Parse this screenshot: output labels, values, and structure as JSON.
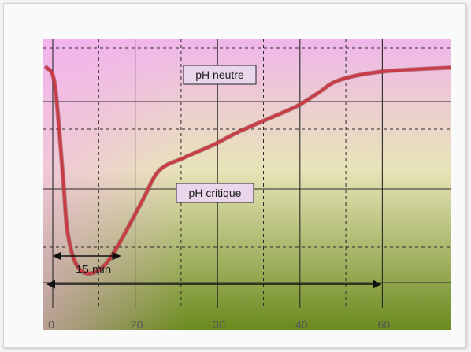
{
  "chart_data": {
    "type": "line",
    "title": "",
    "xlabel": "",
    "ylabel": "",
    "x_ticks": [
      "0",
      "20",
      "30",
      "40",
      "60"
    ],
    "reference_lines": [
      {
        "label": "pH neutre",
        "level": 7.0
      },
      {
        "label": "pH critique",
        "level": 5.5
      }
    ],
    "ylim": [
      4.3,
      7.4
    ],
    "interval_annotations": [
      {
        "label": "15 min",
        "from": 0,
        "to": 15
      },
      {
        "label": "",
        "from": 0,
        "to": 60
      }
    ],
    "series": [
      {
        "x": [
          0,
          2,
          4,
          5,
          7,
          10,
          14,
          18,
          23,
          27,
          33,
          40,
          46,
          53,
          60,
          65,
          70,
          80,
          97
        ],
        "y": [
          7.1,
          6.9,
          5.8,
          5.2,
          4.82,
          4.7,
          4.8,
          5.1,
          5.55,
          5.9,
          6.05,
          6.2,
          6.35,
          6.5,
          6.65,
          6.8,
          6.95,
          7.05,
          7.1
        ]
      }
    ],
    "colors": {
      "curve": "#c83c46",
      "background_top": "#f0b6ea",
      "background_bottom": "#6a8a1e",
      "grid": "#2a2a2a"
    }
  }
}
